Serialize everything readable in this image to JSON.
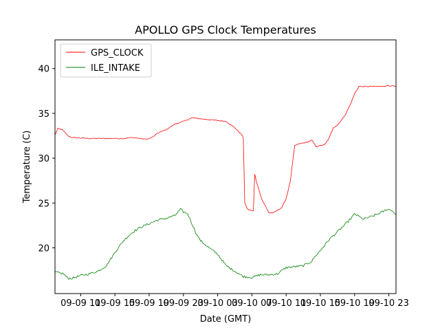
{
  "chart_data": {
    "type": "line",
    "title": "APOLLO GPS Clock Temperatures",
    "xlabel": "Date (GMT)",
    "ylabel": "Temperature (C)",
    "xlim": [
      "09-09 08:00",
      "09-10 23:50"
    ],
    "ylim": [
      14.9,
      43.2
    ],
    "x_tick_labels": [
      "09-09 11",
      "09-09 15",
      "09-09 19",
      "09-09 23",
      "09-10 03",
      "09-10 07",
      "09-10 11",
      "09-10 15",
      "09-10 19",
      "09-10 23"
    ],
    "y_tick_labels": [
      "20",
      "25",
      "30",
      "35",
      "40"
    ],
    "y_ticks": [
      20,
      25,
      30,
      35,
      40
    ],
    "legend_position": "upper-left",
    "series": [
      {
        "name": "GPS_CLOCK",
        "color": "#ff0000",
        "x": [
          "09-09 08:00",
          "09-09 08:20",
          "09-09 08:50",
          "09-09 09:30",
          "09-09 10:00",
          "09-09 12:00",
          "09-09 14:00",
          "09-09 16:00",
          "09-09 17:00",
          "09-09 18:00",
          "09-09 18:40",
          "09-09 19:20",
          "09-09 20:00",
          "09-09 21:00",
          "09-09 22:00",
          "09-09 23:00",
          "09-10 00:00",
          "09-10 01:00",
          "09-10 02:00",
          "09-10 03:00",
          "09-10 04:00",
          "09-10 05:00",
          "09-10 05:50",
          "09-10 06:00",
          "09-10 06:10",
          "09-10 06:30",
          "09-10 07:10",
          "09-10 07:20",
          "09-10 07:30",
          "09-10 08:10",
          "09-10 09:00",
          "09-10 09:30",
          "09-10 10:30",
          "09-10 11:00",
          "09-10 11:30",
          "09-10 12:00",
          "09-10 12:30",
          "09-10 13:30",
          "09-10 14:00",
          "09-10 14:30",
          "09-10 15:30",
          "09-10 16:00",
          "09-10 16:30",
          "09-10 17:00",
          "09-10 17:30",
          "09-10 18:00",
          "09-10 18:30",
          "09-10 19:00",
          "09-10 19:30",
          "09-10 20:00",
          "09-10 21:00",
          "09-10 22:00",
          "09-10 23:00",
          "09-10 23:50"
        ],
        "y": [
          32.6,
          33.3,
          33.2,
          32.5,
          32.3,
          32.2,
          32.2,
          32.2,
          32.3,
          32.2,
          32.1,
          32.3,
          32.8,
          33.2,
          33.8,
          34.1,
          34.5,
          34.4,
          34.3,
          34.2,
          34.1,
          33.4,
          32.6,
          32.2,
          25.0,
          24.3,
          24.1,
          28.2,
          27.5,
          25.4,
          23.9,
          23.9,
          24.5,
          25.5,
          27.5,
          31.4,
          31.6,
          31.8,
          32.0,
          31.3,
          31.5,
          32.2,
          33.4,
          33.7,
          34.3,
          35.0,
          36.0,
          37.2,
          38.0,
          38.0,
          38.0,
          38.0,
          38.1,
          38.0
        ]
      },
      {
        "name": "ILE_INTAKE",
        "color": "#008000",
        "x": [
          "09-09 08:00",
          "09-09 08:30",
          "09-09 09:00",
          "09-09 09:30",
          "09-09 10:00",
          "09-09 11:00",
          "09-09 12:00",
          "09-09 13:00",
          "09-09 14:00",
          "09-09 15:00",
          "09-09 16:00",
          "09-09 17:00",
          "09-09 18:00",
          "09-09 19:00",
          "09-09 20:00",
          "09-09 21:00",
          "09-09 22:00",
          "09-09 22:40",
          "09-09 23:00",
          "09-09 23:30",
          "09-10 00:30",
          "09-10 01:00",
          "09-10 02:00",
          "09-10 03:00",
          "09-10 04:00",
          "09-10 05:00",
          "09-10 06:00",
          "09-10 07:00",
          "09-10 08:00",
          "09-10 09:00",
          "09-10 10:00",
          "09-10 11:00",
          "09-10 12:00",
          "09-10 13:00",
          "09-10 14:00",
          "09-10 14:20",
          "09-10 15:00",
          "09-10 16:00",
          "09-10 17:00",
          "09-10 18:00",
          "09-10 18:40",
          "09-10 19:00",
          "09-10 20:00",
          "09-10 21:00",
          "09-10 22:00",
          "09-10 22:50",
          "09-10 23:20",
          "09-10 23:50"
        ],
        "y": [
          17.3,
          17.2,
          17.1,
          16.6,
          16.6,
          16.9,
          17.1,
          17.4,
          18.0,
          19.5,
          20.8,
          21.7,
          22.3,
          22.7,
          23.1,
          23.3,
          23.6,
          24.3,
          24.0,
          23.8,
          21.6,
          20.8,
          20.0,
          19.3,
          18.0,
          17.4,
          16.8,
          16.7,
          17.0,
          17.0,
          17.1,
          17.8,
          17.9,
          18.0,
          18.5,
          19.0,
          19.7,
          20.9,
          21.8,
          22.7,
          23.4,
          23.8,
          23.2,
          23.5,
          23.9,
          24.3,
          24.2,
          23.7
        ]
      }
    ]
  }
}
